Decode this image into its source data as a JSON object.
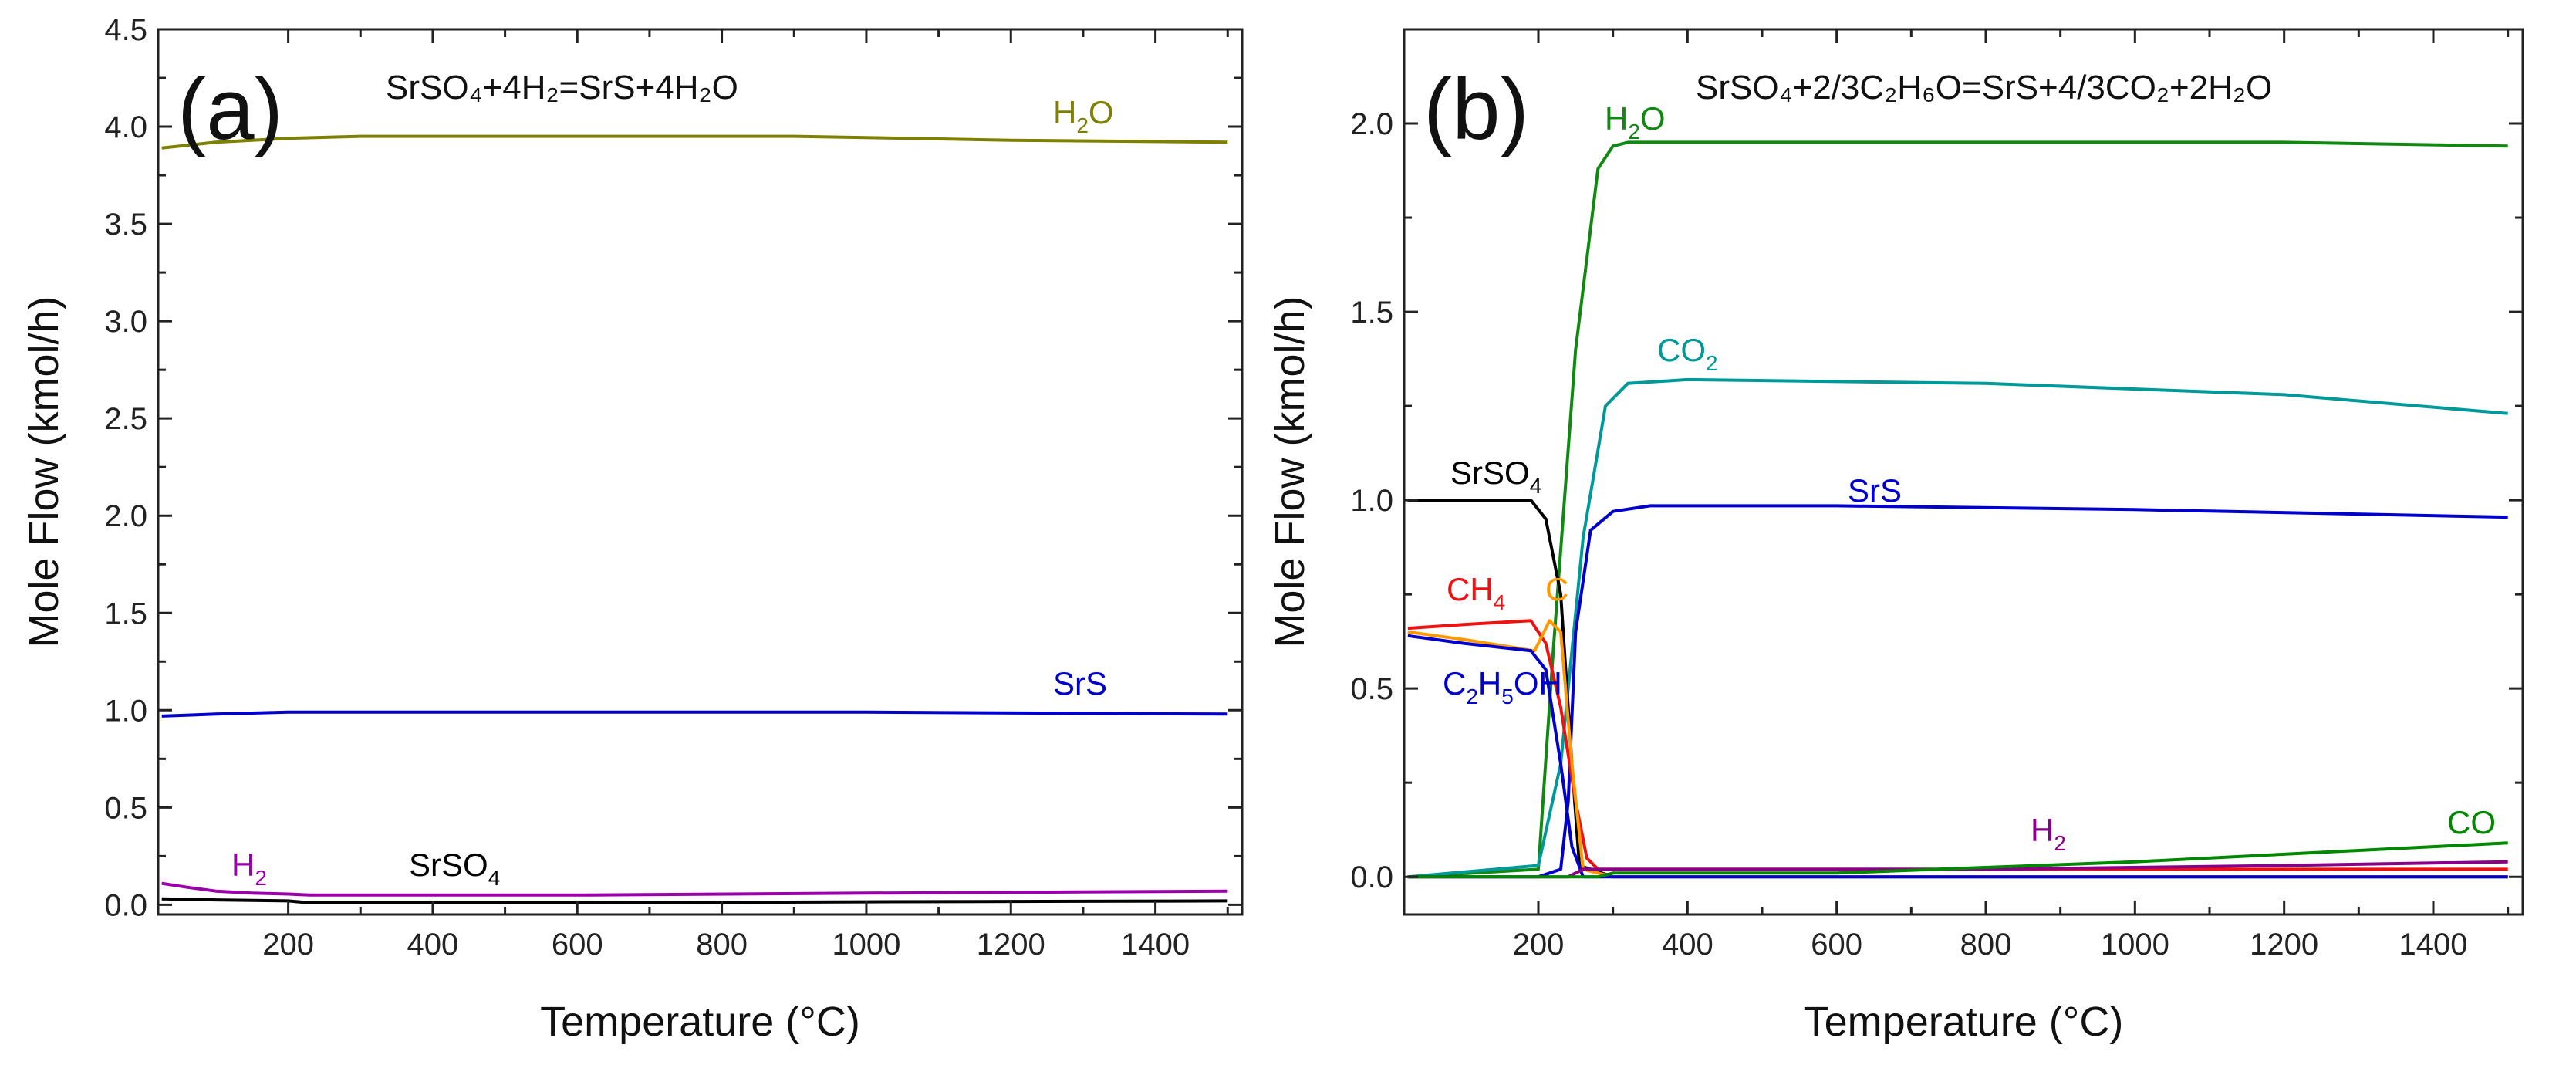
{
  "chart_data": [
    {
      "type": "line",
      "panel_label": "(a)",
      "reaction_text": "SrSO₄+4H₂=SrS+4H₂O",
      "xlabel": "Temperature (°C)",
      "ylabel": "Mole Flow (kmol/h)",
      "xlim": [
        20,
        1520
      ],
      "ylim": [
        -0.05,
        4.5
      ],
      "xticks": [
        200,
        400,
        600,
        800,
        1000,
        1200,
        1400
      ],
      "yticks": [
        0.0,
        0.5,
        1.0,
        1.5,
        2.0,
        2.5,
        3.0,
        3.5,
        4.0,
        4.5
      ],
      "ytick_format": "0.0",
      "legend": "inline labels",
      "series": [
        {
          "name": "H₂O",
          "label": "H",
          "sub": "2",
          "label_suffix": "O",
          "color": "#7f7f00",
          "x": [
            25,
            50,
            100,
            150,
            200,
            300,
            600,
            900,
            1200,
            1500
          ],
          "y": [
            3.89,
            3.9,
            3.92,
            3.93,
            3.94,
            3.95,
            3.95,
            3.95,
            3.93,
            3.92
          ]
        },
        {
          "name": "SrS",
          "label": "SrS",
          "color": "#0000cc",
          "x": [
            25,
            100,
            200,
            400,
            1000,
            1500
          ],
          "y": [
            0.97,
            0.98,
            0.99,
            0.99,
            0.99,
            0.98
          ]
        },
        {
          "name": "H₂",
          "label": "H",
          "sub": "2",
          "label_suffix": "",
          "color": "#9900aa",
          "x": [
            25,
            60,
            100,
            150,
            200,
            230,
            600,
            1000,
            1500
          ],
          "y": [
            0.11,
            0.09,
            0.07,
            0.06,
            0.055,
            0.05,
            0.05,
            0.06,
            0.07
          ]
        },
        {
          "name": "SrSO₄",
          "label": "SrSO",
          "sub": "4",
          "label_suffix": "",
          "color": "#000000",
          "x": [
            25,
            100,
            200,
            230,
            600,
            1000,
            1500
          ],
          "y": [
            0.03,
            0.025,
            0.02,
            0.01,
            0.01,
            0.015,
            0.02
          ]
        }
      ]
    },
    {
      "type": "line",
      "panel_label": "(b)",
      "reaction_text": "SrSO₄+2/3C₂H₆O=SrS+4/3CO₂+2H₂O",
      "xlabel": "Temperature (°C)",
      "ylabel": "Mole Flow (kmol/h)",
      "xlim": [
        20,
        1520
      ],
      "ylim": [
        -0.1,
        2.25
      ],
      "xticks": [
        200,
        400,
        600,
        800,
        1000,
        1200,
        1400
      ],
      "yticks": [
        0.0,
        0.5,
        1.0,
        1.5,
        2.0
      ],
      "ytick_format": "0.0",
      "legend": "inline labels",
      "series": [
        {
          "name": "H₂O",
          "label": "H",
          "sub": "2",
          "label_suffix": "O",
          "color": "#118811",
          "x": [
            25,
            200,
            220,
            250,
            280,
            300,
            320,
            400,
            800,
            1200,
            1500
          ],
          "y": [
            0,
            0.02,
            0.6,
            1.4,
            1.88,
            1.94,
            1.95,
            1.95,
            1.95,
            1.95,
            1.94
          ]
        },
        {
          "name": "CO₂",
          "label": "CO",
          "sub": "2",
          "label_suffix": "",
          "color": "#009999",
          "x": [
            25,
            200,
            230,
            260,
            290,
            320,
            400,
            800,
            1200,
            1500
          ],
          "y": [
            0,
            0.03,
            0.3,
            0.9,
            1.25,
            1.31,
            1.32,
            1.31,
            1.28,
            1.23
          ]
        },
        {
          "name": "SrS",
          "label": "SrS",
          "color": "#0000cc",
          "x": [
            25,
            200,
            230,
            240,
            250,
            270,
            300,
            350,
            600,
            1000,
            1500
          ],
          "y": [
            0,
            0,
            0.02,
            0.2,
            0.65,
            0.92,
            0.97,
            0.985,
            0.985,
            0.975,
            0.955
          ]
        },
        {
          "name": "SrSO₄",
          "label": "SrSO",
          "sub": "4",
          "label_suffix": "",
          "color": "#000000",
          "x": [
            25,
            190,
            210,
            230,
            245,
            255,
            300,
            1500
          ],
          "y": [
            1.0,
            1.0,
            0.95,
            0.75,
            0.3,
            0.03,
            0.0,
            0.0
          ]
        },
        {
          "name": "CH₄",
          "label": "CH",
          "sub": "4",
          "label_suffix": "",
          "color": "#ee1111",
          "x": [
            25,
            100,
            190,
            210,
            230,
            250,
            265,
            280,
            400,
            1500
          ],
          "y": [
            0.66,
            0.67,
            0.68,
            0.62,
            0.45,
            0.2,
            0.05,
            0.02,
            0.02,
            0.02
          ]
        },
        {
          "name": "C",
          "label": "C",
          "color": "#ff9900",
          "x": [
            25,
            100,
            195,
            215,
            230,
            245,
            260,
            300,
            1500
          ],
          "y": [
            0.65,
            0.63,
            0.6,
            0.68,
            0.65,
            0.3,
            0.02,
            0.0,
            0.0
          ]
        },
        {
          "name": "C₂H₅OH",
          "label": "C",
          "sub": "2",
          "label_suffix": "H",
          "sub2": "5",
          "label_suffix2": "OH",
          "color": "#0000cc",
          "x": [
            25,
            100,
            190,
            210,
            230,
            245,
            260,
            1500
          ],
          "y": [
            0.64,
            0.62,
            0.6,
            0.55,
            0.3,
            0.08,
            0.0,
            0.0
          ]
        },
        {
          "name": "H₂",
          "label": "H",
          "sub": "2",
          "label_suffix": "",
          "color": "#880088",
          "x": [
            25,
            240,
            260,
            300,
            800,
            1200,
            1500
          ],
          "y": [
            0,
            0,
            0.02,
            0.02,
            0.02,
            0.03,
            0.04
          ]
        },
        {
          "name": "CO",
          "label": "CO",
          "color": "#008800",
          "x": [
            25,
            280,
            300,
            600,
            1000,
            1300,
            1500
          ],
          "y": [
            0,
            0,
            0.01,
            0.01,
            0.04,
            0.07,
            0.09
          ]
        }
      ]
    }
  ]
}
